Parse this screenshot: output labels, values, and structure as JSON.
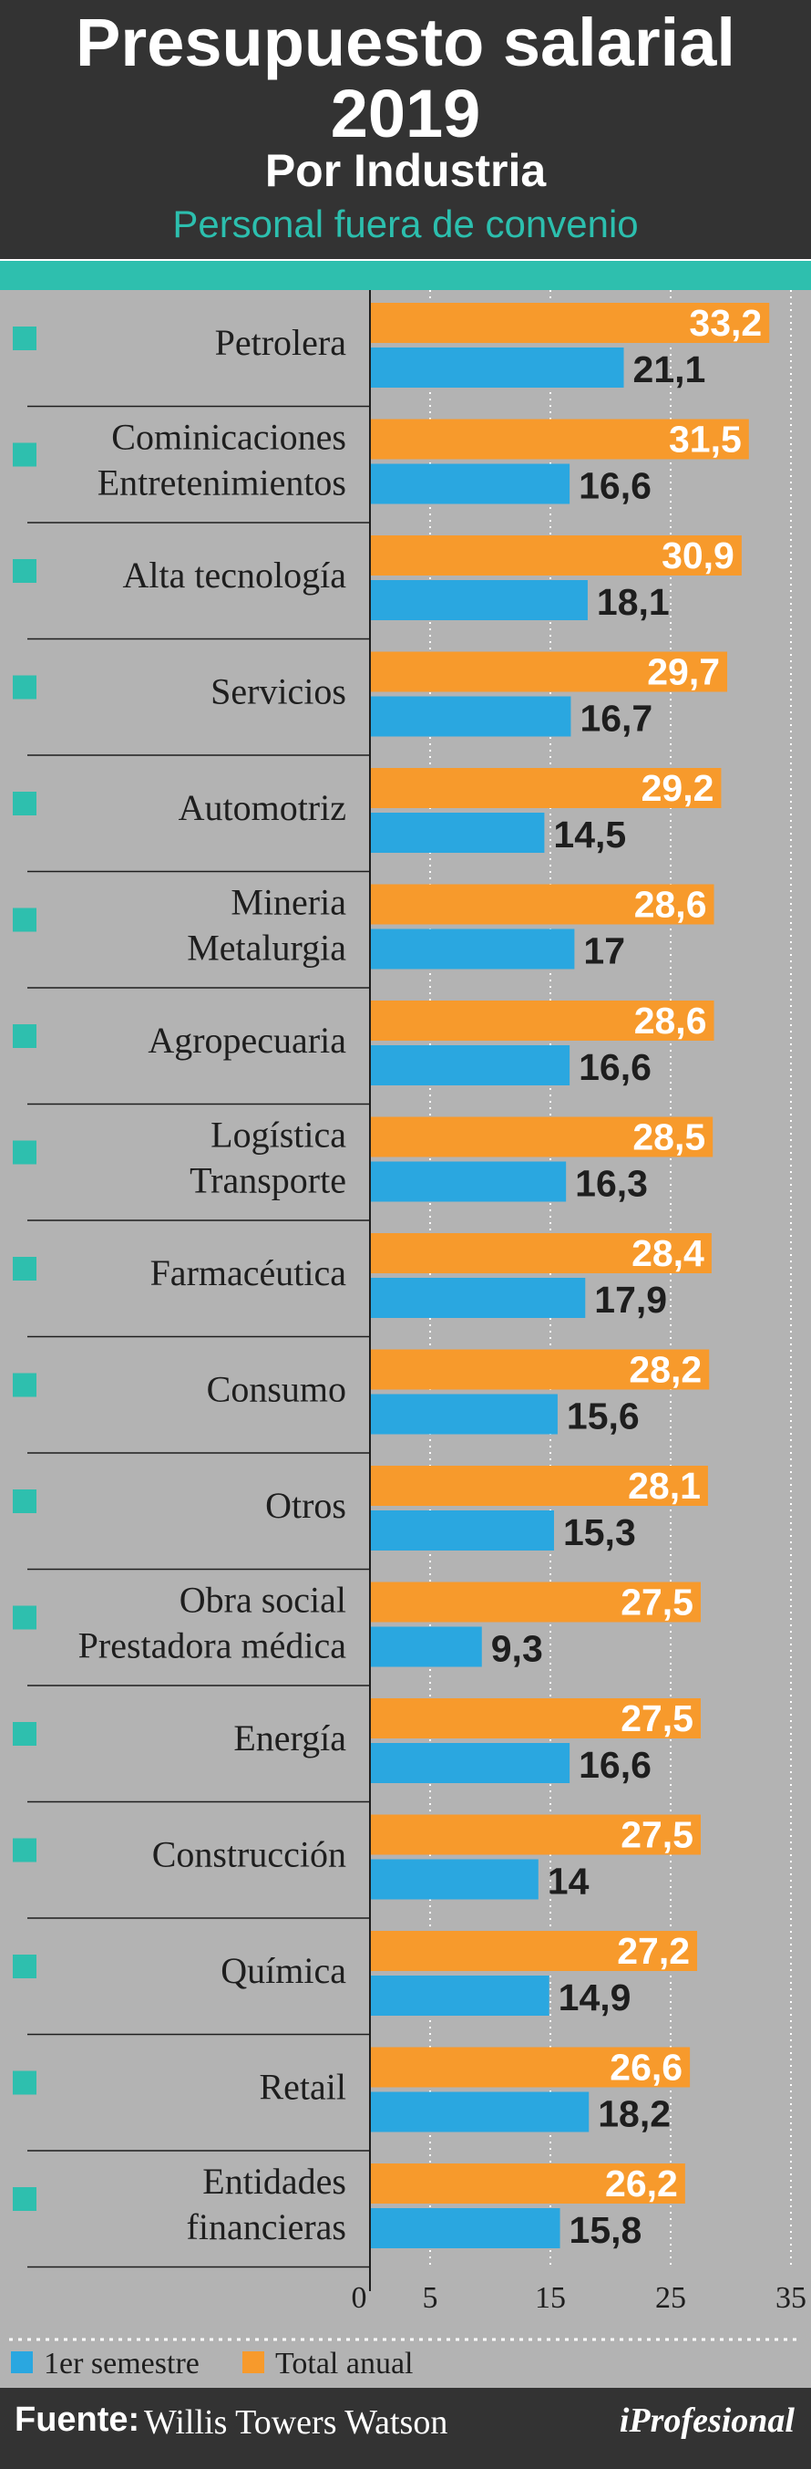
{
  "header": {
    "title": "Presupuesto salarial 2019",
    "subtitle": "Por Industria",
    "subsubtitle": "Personal fuera de convenio"
  },
  "footer": {
    "source_label": "Fuente:",
    "source": "Willis Towers Watson",
    "logo": "iProfesional"
  },
  "colors": {
    "header_bg": "#333333",
    "accent_teal": "#2ebfae",
    "plot_bg": "#b3b3b3",
    "total_anual": "#f79a2c",
    "primer_semestre": "#2aa7e0"
  },
  "chart_data": {
    "type": "bar",
    "orientation": "horizontal",
    "title": "Presupuesto salarial 2019",
    "subtitle": "Por Industria — Personal fuera de convenio",
    "categories": [
      [
        "Petrolera"
      ],
      [
        "Cominicaciones",
        "Entretenimientos"
      ],
      [
        "Alta tecnología"
      ],
      [
        "Servicios"
      ],
      [
        "Automotriz"
      ],
      [
        "Mineria",
        "Metalurgia"
      ],
      [
        "Agropecuaria"
      ],
      [
        "Logística",
        "Transporte"
      ],
      [
        "Farmacéutica"
      ],
      [
        "Consumo"
      ],
      [
        "Otros"
      ],
      [
        "Obra social",
        "Prestadora médica"
      ],
      [
        "Energía"
      ],
      [
        "Construcción"
      ],
      [
        "Química"
      ],
      [
        "Retail"
      ],
      [
        "Entidades",
        "financieras"
      ]
    ],
    "series": [
      {
        "name": "Total anual",
        "color": "#f79a2c",
        "values": [
          33.2,
          31.5,
          30.9,
          29.7,
          29.2,
          28.6,
          28.6,
          28.5,
          28.4,
          28.2,
          28.1,
          27.5,
          27.5,
          27.5,
          27.2,
          26.6,
          26.2
        ],
        "labels": [
          "33,2",
          "31,5",
          "30,9",
          "29,7",
          "29,2",
          "28,6",
          "28,6",
          "28,5",
          "28,4",
          "28,2",
          "28,1",
          "27,5",
          "27,5",
          "27,5",
          "27,2",
          "26,6",
          "26,2"
        ]
      },
      {
        "name": "1er semestre",
        "color": "#2aa7e0",
        "values": [
          21.1,
          16.6,
          18.1,
          16.7,
          14.5,
          17,
          16.6,
          16.3,
          17.9,
          15.6,
          15.3,
          9.3,
          16.6,
          14,
          14.9,
          18.2,
          15.8
        ],
        "labels": [
          "21,1",
          "16,6",
          "18,1",
          "16,7",
          "14,5",
          "17",
          "16,6",
          "16,3",
          "17,9",
          "15,6",
          "15,3",
          "9,3",
          "16,6",
          "14",
          "14,9",
          "18,2",
          "15,8"
        ]
      }
    ],
    "xlim": [
      0,
      35
    ],
    "xticks": [
      0,
      5,
      15,
      25,
      35
    ],
    "grid": "vertical",
    "legend": "bottom-left",
    "legend_order": [
      "1er semestre",
      "Total anual"
    ]
  }
}
